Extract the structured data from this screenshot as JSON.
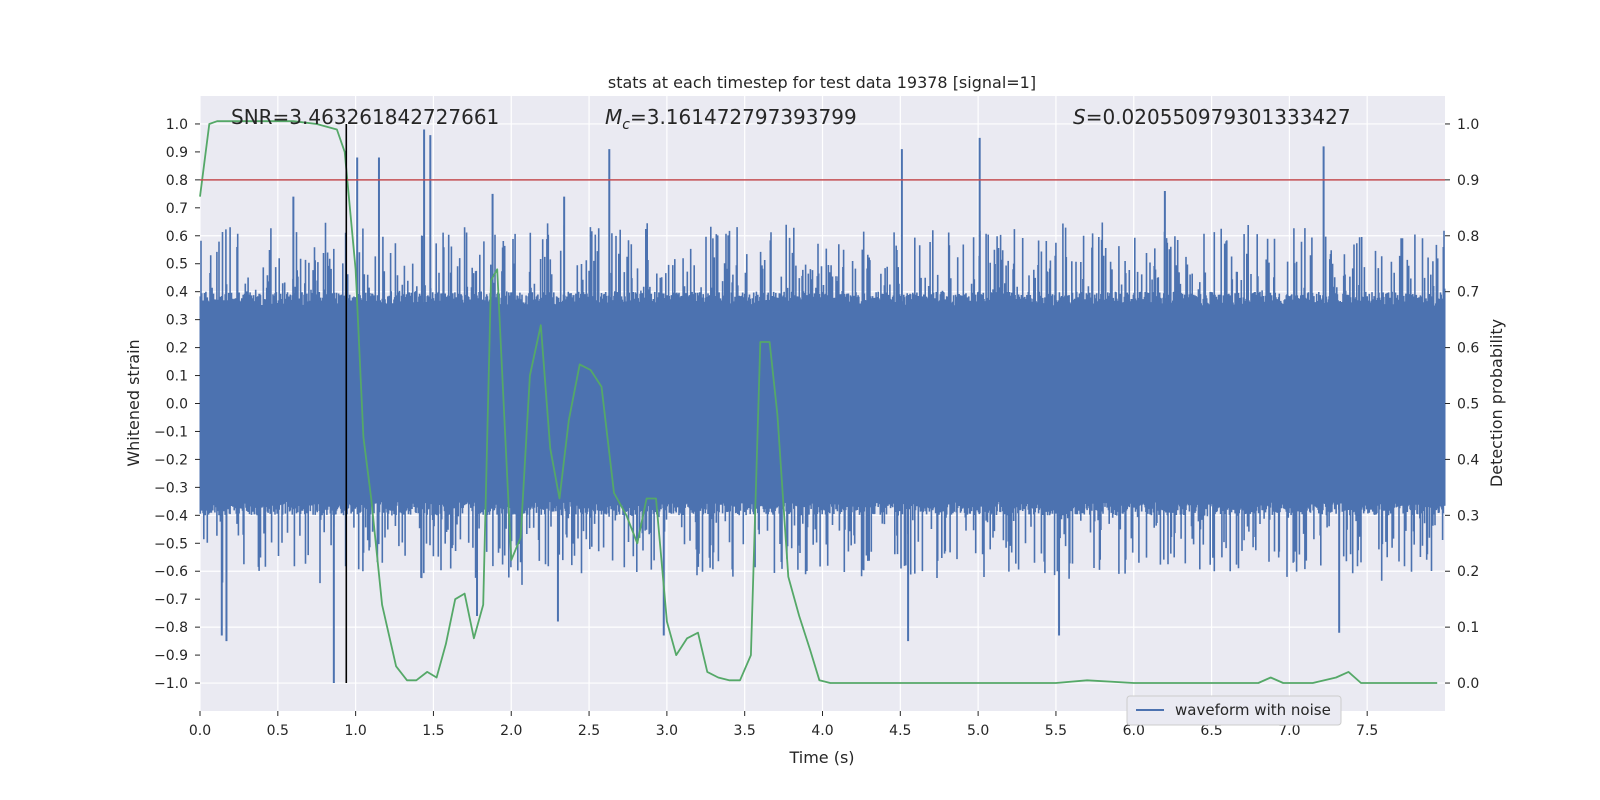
{
  "chart_data": {
    "type": "line",
    "title": "stats at each timestep for test data 19378 [signal=1]",
    "xlabel": "Time (s)",
    "ylabel_left": "Whitened strain",
    "ylabel_right": "Detection probability",
    "xlim": [
      0.0,
      8.0
    ],
    "ylim_left": [
      -1.1,
      1.1
    ],
    "ylim_right": [
      -0.05,
      1.05
    ],
    "x_ticks": [
      "0.0",
      "0.5",
      "1.0",
      "1.5",
      "2.0",
      "2.5",
      "3.0",
      "3.5",
      "4.0",
      "4.5",
      "5.0",
      "5.5",
      "6.0",
      "6.5",
      "7.0",
      "7.5"
    ],
    "y_ticks_left": [
      "1.0",
      "0.9",
      "0.8",
      "0.7",
      "0.6",
      "0.5",
      "0.4",
      "0.3",
      "0.2",
      "0.1",
      "0.0",
      "−0.1",
      "−0.2",
      "−0.3",
      "−0.4",
      "−0.5",
      "−0.6",
      "−0.7",
      "−0.8",
      "−0.9",
      "−1.0"
    ],
    "y_ticks_right": [
      "1.0",
      "0.9",
      "0.8",
      "0.7",
      "0.6",
      "0.5",
      "0.4",
      "0.3",
      "0.2",
      "0.1",
      "0.0"
    ],
    "grid": true,
    "legend_position": "lower-right",
    "annotations": {
      "snr": "SNR=3.463261842727661",
      "mc_symbol": "M",
      "mc_sub": "c",
      "mc_value": "=3.161472797393799",
      "s_symbol": "S",
      "s_value": "=0.020550979301333427"
    },
    "threshold_line": {
      "axis": "right",
      "value": 0.9,
      "color": "#c44e52"
    },
    "marker_line": {
      "x": 0.94,
      "y_range": [
        -1.0,
        1.0
      ],
      "color": "#000000"
    },
    "series": [
      {
        "name": "waveform with noise",
        "axis": "left",
        "color": "#4c72b0",
        "band_core": [
          -0.35,
          0.35
        ],
        "envelope": [
          0.4,
          0.65
        ],
        "peaks": [
          {
            "x": 0.86,
            "y": -1.0
          },
          {
            "x": 1.01,
            "y": 0.88
          },
          {
            "x": 1.15,
            "y": 0.88
          },
          {
            "x": 1.44,
            "y": 0.98
          },
          {
            "x": 1.48,
            "y": 0.96
          },
          {
            "x": 1.88,
            "y": 0.75
          },
          {
            "x": 2.34,
            "y": 0.74
          },
          {
            "x": 2.63,
            "y": 0.91
          },
          {
            "x": 2.98,
            "y": -0.83
          },
          {
            "x": 4.51,
            "y": 0.91
          },
          {
            "x": 4.55,
            "y": -0.85
          },
          {
            "x": 5.01,
            "y": 0.95
          },
          {
            "x": 5.52,
            "y": -0.83
          },
          {
            "x": 7.22,
            "y": 0.92
          },
          {
            "x": 7.32,
            "y": -0.82
          },
          {
            "x": 0.14,
            "y": -0.83
          },
          {
            "x": 0.17,
            "y": -0.85
          },
          {
            "x": 1.78,
            "y": -0.76
          },
          {
            "x": 2.3,
            "y": -0.78
          },
          {
            "x": 0.6,
            "y": 0.74
          },
          {
            "x": 6.2,
            "y": 0.76
          }
        ]
      },
      {
        "name": "",
        "axis": "right",
        "color": "#55a868",
        "x": [
          0.0,
          0.06,
          0.11,
          0.2,
          0.4,
          0.6,
          0.75,
          0.88,
          0.93,
          1.0,
          1.05,
          1.1,
          1.17,
          1.26,
          1.33,
          1.39,
          1.46,
          1.52,
          1.58,
          1.64,
          1.7,
          1.76,
          1.82,
          1.87,
          1.91,
          1.96,
          2.0,
          2.06,
          2.12,
          2.19,
          2.25,
          2.31,
          2.37,
          2.44,
          2.51,
          2.58,
          2.66,
          2.74,
          2.81,
          2.87,
          2.93,
          3.0,
          3.06,
          3.13,
          3.2,
          3.26,
          3.33,
          3.4,
          3.47,
          3.54,
          3.6,
          3.66,
          3.71,
          3.78,
          3.85,
          3.92,
          3.98,
          4.05,
          4.2,
          4.5,
          4.8,
          5.1,
          5.5,
          5.7,
          6.0,
          6.5,
          6.8,
          6.88,
          6.96,
          7.05,
          7.15,
          7.3,
          7.38,
          7.46,
          7.55,
          7.7,
          7.8,
          7.95
        ],
        "y": [
          0.87,
          1.0,
          1.005,
          1.005,
          1.005,
          1.005,
          1.0,
          0.99,
          0.95,
          0.74,
          0.44,
          0.33,
          0.14,
          0.03,
          0.005,
          0.005,
          0.02,
          0.01,
          0.07,
          0.15,
          0.16,
          0.08,
          0.14,
          0.72,
          0.74,
          0.45,
          0.22,
          0.26,
          0.55,
          0.64,
          0.42,
          0.33,
          0.47,
          0.57,
          0.56,
          0.53,
          0.34,
          0.3,
          0.25,
          0.33,
          0.33,
          0.11,
          0.05,
          0.08,
          0.09,
          0.02,
          0.01,
          0.005,
          0.005,
          0.05,
          0.61,
          0.61,
          0.48,
          0.19,
          0.12,
          0.06,
          0.005,
          0.0,
          0.0,
          0.0,
          0.0,
          0.0,
          0.0,
          0.005,
          0.0,
          0.0,
          0.0,
          0.01,
          0.0,
          0.0,
          0.0,
          0.01,
          0.02,
          0.0,
          0.0,
          0.0,
          0.0,
          0.0
        ]
      }
    ]
  }
}
